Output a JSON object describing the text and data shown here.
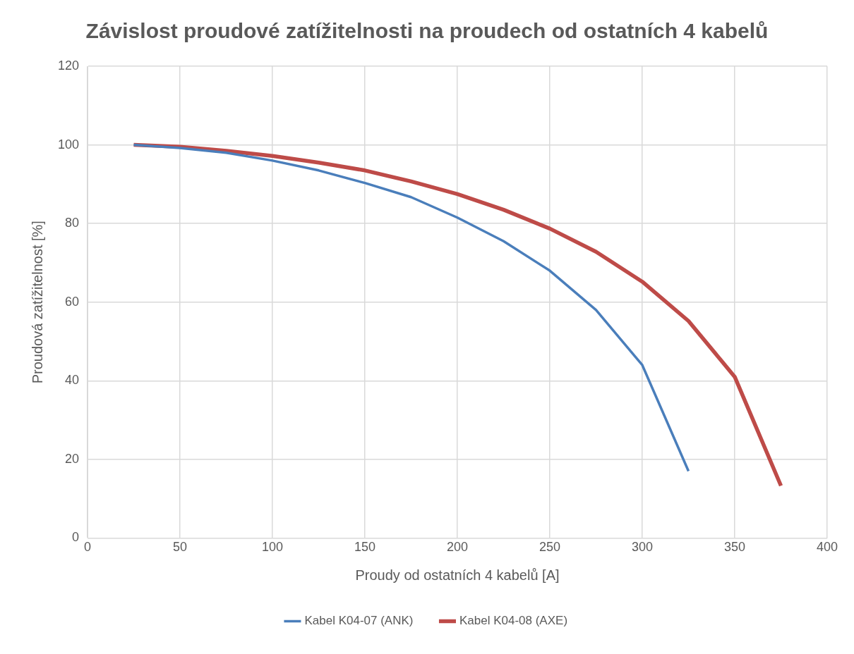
{
  "chart_data": {
    "type": "line",
    "title": "Závislost proudové zatížitelnosti na proudech od ostatních 4 kabelů",
    "xlabel": "Proudy od ostatních 4 kabelů [A]",
    "ylabel": "Proudová zatížitelnost [%]",
    "xlim": [
      0,
      400
    ],
    "xticks": [
      0,
      50,
      100,
      150,
      200,
      250,
      300,
      350,
      400
    ],
    "ylim": [
      0,
      120
    ],
    "yticks": [
      0,
      20,
      40,
      60,
      80,
      100,
      120
    ],
    "grid": true,
    "legend": "bottom",
    "marker": "none",
    "line_style": "solid",
    "series": [
      {
        "name": "Kabel K04-07 (ANK)",
        "color": "#4a7ebb",
        "x": [
          25,
          50,
          75,
          100,
          125,
          150,
          175,
          200,
          225,
          250,
          275,
          300,
          325
        ],
        "values": [
          100,
          99.2,
          98,
          96,
          93.5,
          90.3,
          86.7,
          81.5,
          75.5,
          68,
          58,
          44,
          17
        ]
      },
      {
        "name": "Kabel K04-08 (AXE)",
        "color": "#be4b48",
        "x": [
          25,
          50,
          75,
          100,
          125,
          150,
          175,
          200,
          225,
          250,
          275,
          300,
          325,
          350,
          375
        ],
        "values": [
          100,
          99.5,
          98.5,
          97.2,
          95.5,
          93.5,
          90.7,
          87.5,
          83.5,
          78.7,
          72.8,
          65.2,
          55.2,
          41,
          13.3
        ]
      }
    ]
  }
}
